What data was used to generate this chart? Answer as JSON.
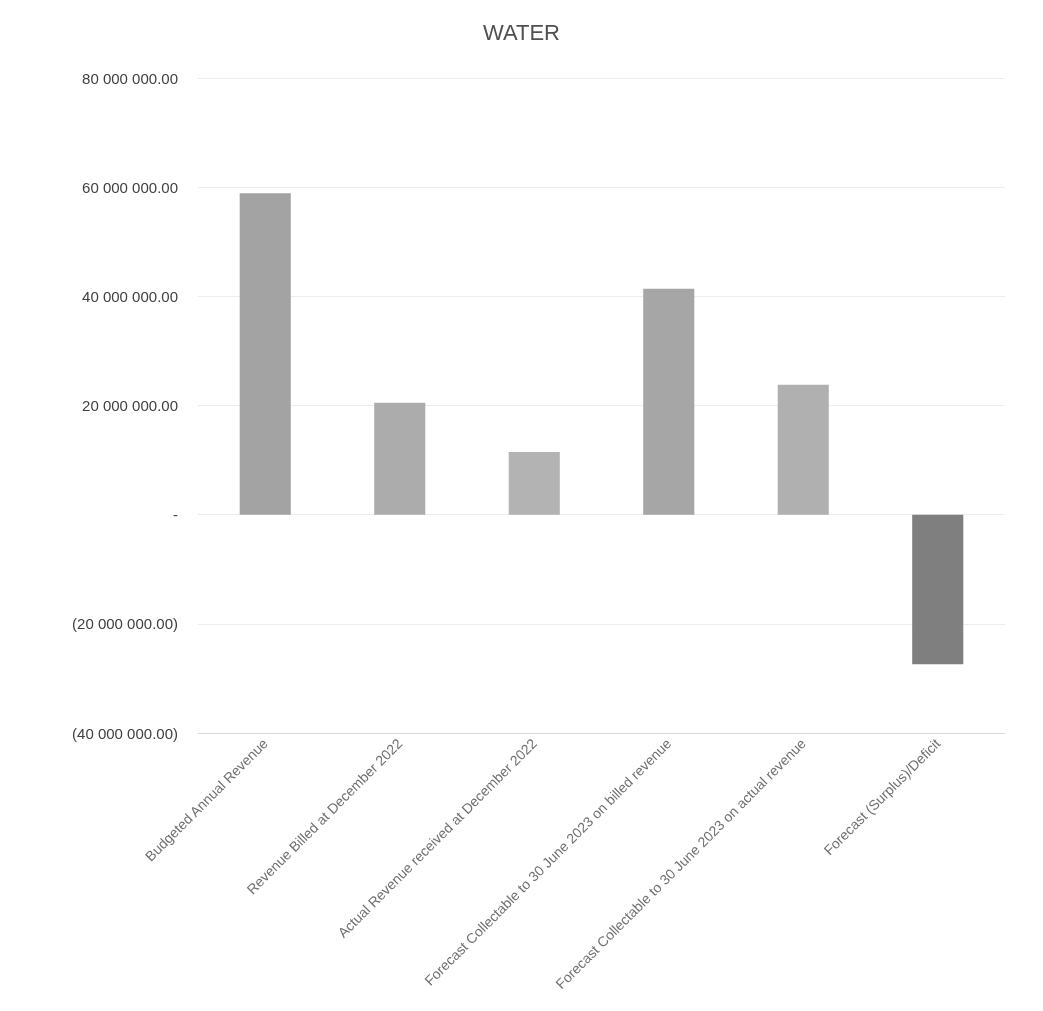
{
  "chart_data": {
    "type": "bar",
    "title": "WATER",
    "categories": [
      "Budgeted Annual Revenue",
      "Revenue Billed at December 2022",
      "Actual Revenue received at December 2022",
      "Forecast Collectable to 30 June 2023 on billed revenue",
      "Forecast Collectable to 30 June 2023 on actual revenue",
      "Forecast (Surplus)/Deficit"
    ],
    "values": [
      58900000,
      20500000,
      11500000,
      41400000,
      23800000,
      -27400000
    ],
    "colors": [
      "#a3a3a3",
      "#acacac",
      "#b3b3b3",
      "#a6a6a6",
      "#b0b0b0",
      "#7f7f7f"
    ],
    "ylim": [
      -40000000,
      80000000
    ],
    "yticks": [
      {
        "value": -40000000,
        "label": "(40 000 000.00)"
      },
      {
        "value": -20000000,
        "label": "(20 000 000.00)"
      },
      {
        "value": 0,
        "label": "-"
      },
      {
        "value": 20000000,
        "label": "20 000 000.00"
      },
      {
        "value": 40000000,
        "label": "40 000 000.00"
      },
      {
        "value": 60000000,
        "label": "60 000 000.00"
      },
      {
        "value": 80000000,
        "label": "80 000 000.00"
      }
    ],
    "grid": true
  }
}
